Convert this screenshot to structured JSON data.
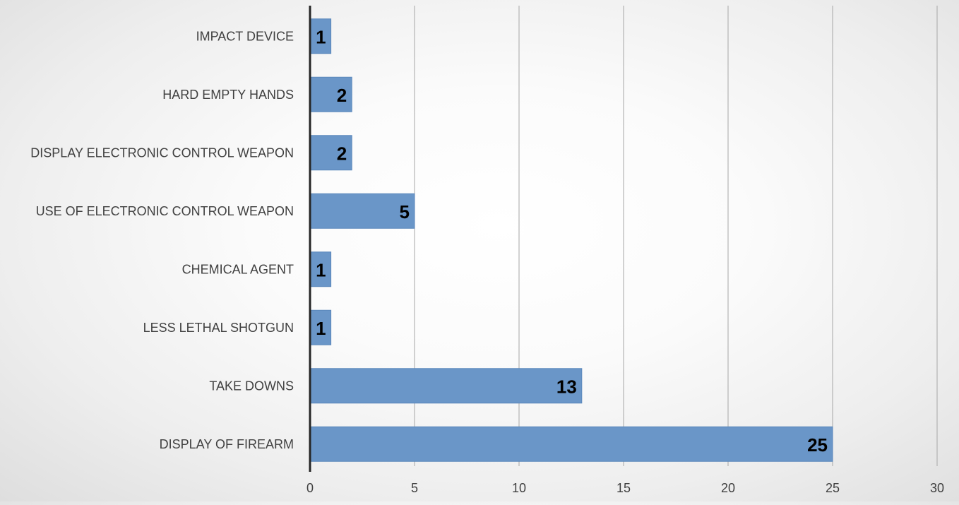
{
  "chart_data": {
    "type": "bar",
    "orientation": "horizontal",
    "categories": [
      "IMPACT DEVICE",
      "HARD EMPTY HANDS",
      "DISPLAY ELECTRONIC CONTROL WEAPON",
      "USE OF ELECTRONIC CONTROL WEAPON",
      "CHEMICAL AGENT",
      "LESS LETHAL SHOTGUN",
      "TAKE DOWNS",
      "DISPLAY OF FIREARM"
    ],
    "values": [
      1,
      2,
      2,
      5,
      1,
      1,
      13,
      25
    ],
    "data_labels": [
      "1",
      "2",
      "2",
      "5",
      "1",
      "1",
      "13",
      "25"
    ],
    "xlim": [
      0,
      30
    ],
    "x_ticks": [
      0,
      5,
      10,
      15,
      20,
      25,
      30
    ],
    "x_tick_labels": [
      "0",
      "5",
      "10",
      "15",
      "20",
      "25",
      "30"
    ],
    "grid": true,
    "legend": "none",
    "title": "",
    "xlabel": "",
    "ylabel": "",
    "colors": {
      "bar_fill": "#6a96c8",
      "bar_edge": "#5b87bb",
      "grid": "#a6a6a6",
      "axis": "#262626",
      "text": "#404040",
      "data_label": "#000000"
    }
  }
}
